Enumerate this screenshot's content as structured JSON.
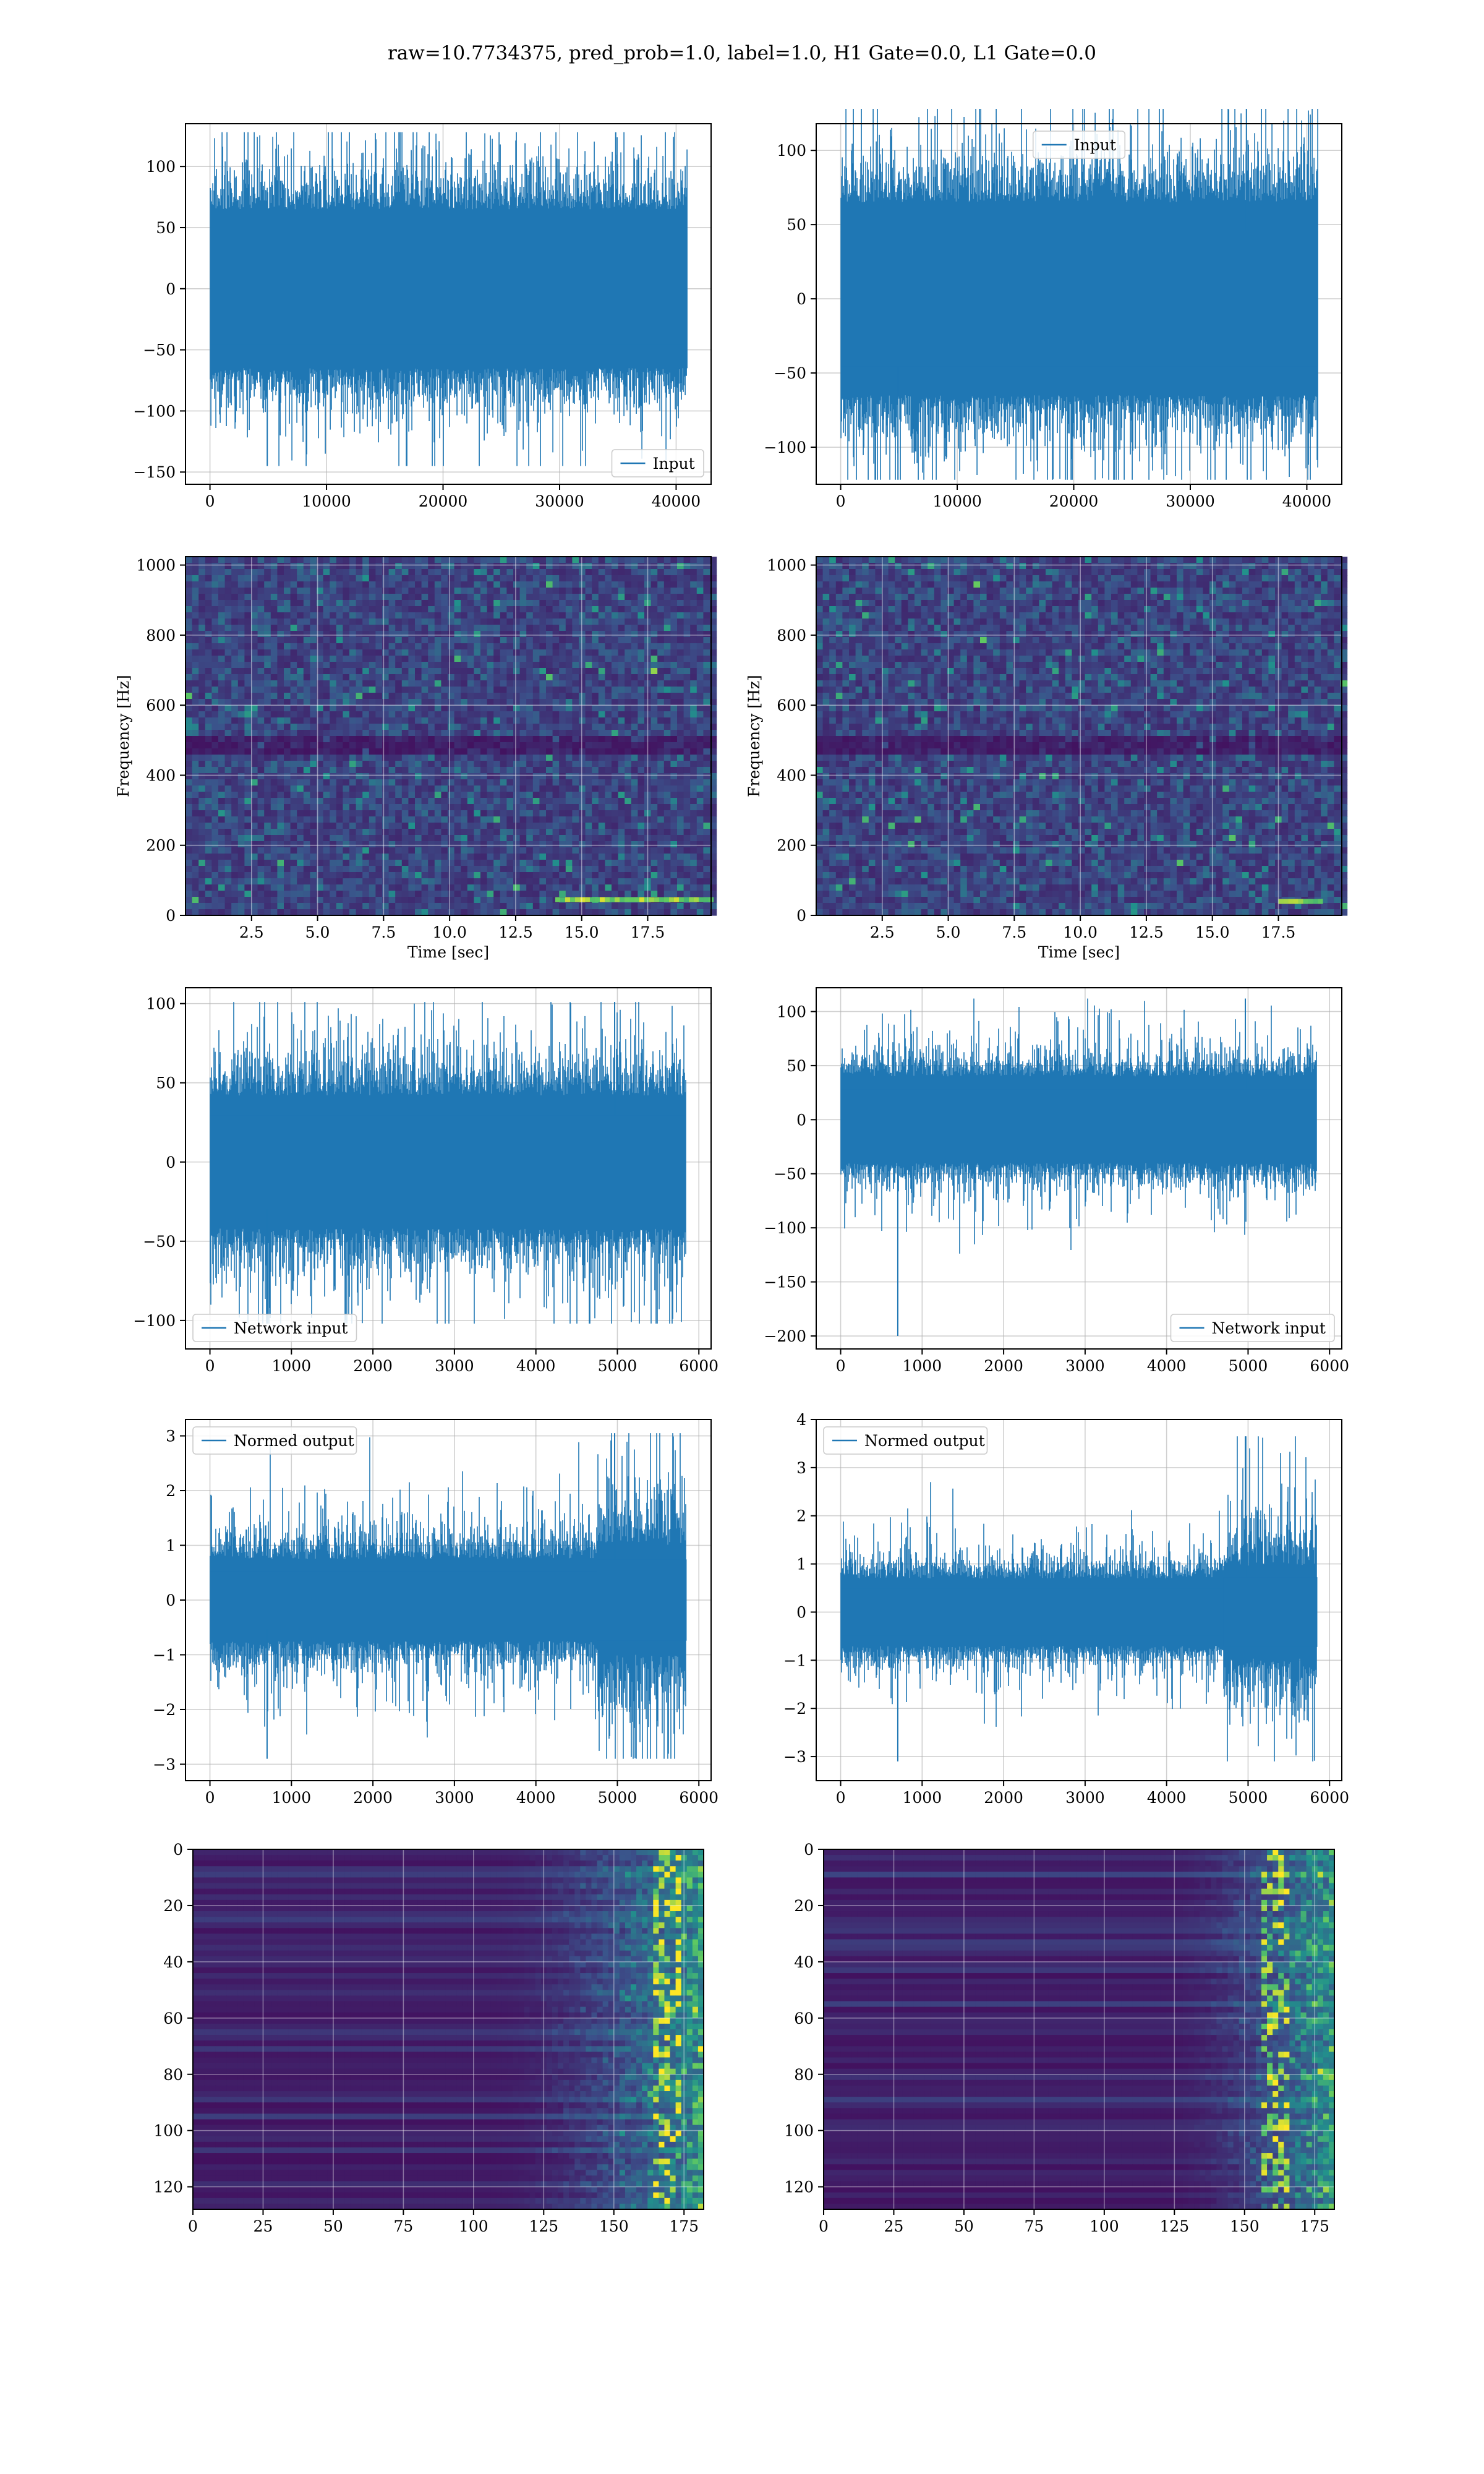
{
  "figure": {
    "title": "raw=10.7734375, pred_prob=1.0, label=1.0, H1 Gate=0.0, L1 Gate=0.0"
  },
  "colors": {
    "signal": "#1f77b4",
    "grid": "#b0b0b0",
    "axes": "#000000",
    "viridis_low": "#440154",
    "viridis_mid": "#21918c",
    "viridis_high": "#fde725"
  },
  "chart_data": [
    {
      "id": "input_h1",
      "type": "line",
      "legend": [
        "Input"
      ],
      "legend_loc": "lower right",
      "xlim": [
        -2100,
        43000
      ],
      "ylim": [
        -160,
        135
      ],
      "xticks": [
        0,
        10000,
        20000,
        30000,
        40000
      ],
      "yticks": [
        -150,
        -100,
        -50,
        0,
        50,
        100
      ],
      "envelope": {
        "n": 40960,
        "core": 65,
        "mean_spike": 30,
        "max": 128,
        "min": -145
      }
    },
    {
      "id": "input_l1",
      "type": "line",
      "legend": [
        "Input"
      ],
      "legend_loc": "upper center",
      "xlim": [
        -2100,
        43000
      ],
      "ylim": [
        -125,
        118
      ],
      "xticks": [
        0,
        10000,
        20000,
        30000,
        40000
      ],
      "yticks": [
        -100,
        -50,
        0,
        50,
        100
      ],
      "envelope": {
        "n": 40960,
        "core": 65,
        "mean_spike": 30,
        "max": 128,
        "min": -122
      }
    },
    {
      "id": "spec_h1",
      "type": "heatmap",
      "xlabel": "Time [sec]",
      "ylabel": "Frequency [Hz]",
      "xlim": [
        0,
        19.9
      ],
      "ylim": [
        0,
        1024
      ],
      "xticks": [
        2.5,
        5.0,
        7.5,
        10.0,
        12.5,
        15.0,
        17.5
      ],
      "yticks": [
        0,
        200,
        400,
        600,
        800,
        1000
      ],
      "dark_band_hz": 500,
      "bright_track": {
        "t": [
          14.0,
          19.9
        ],
        "f_hz": 45
      }
    },
    {
      "id": "spec_l1",
      "type": "heatmap",
      "xlabel": "Time [sec]",
      "ylabel": "Frequency [Hz]",
      "xlim": [
        0,
        19.9
      ],
      "ylim": [
        0,
        1024
      ],
      "xticks": [
        2.5,
        5.0,
        7.5,
        10.0,
        12.5,
        15.0,
        17.5
      ],
      "yticks": [
        0,
        200,
        400,
        600,
        800,
        1000
      ],
      "dark_band_hz": 500,
      "bright_track": {
        "t": [
          17.5,
          19.0
        ],
        "f_hz": 40
      }
    },
    {
      "id": "net_h1",
      "type": "line",
      "legend": [
        "Network input"
      ],
      "legend_loc": "lower left",
      "xlim": [
        -300,
        6150
      ],
      "ylim": [
        -118,
        110
      ],
      "xticks": [
        0,
        1000,
        2000,
        3000,
        4000,
        5000,
        6000
      ],
      "yticks": [
        -100,
        -50,
        0,
        50,
        100
      ],
      "envelope": {
        "n": 5840,
        "core": 42,
        "mean_spike": 25,
        "max": 101,
        "min": -102
      }
    },
    {
      "id": "net_l1",
      "type": "line",
      "legend": [
        "Network input"
      ],
      "legend_loc": "lower right",
      "xlim": [
        -300,
        6150
      ],
      "ylim": [
        -212,
        122
      ],
      "xticks": [
        0,
        1000,
        2000,
        3000,
        4000,
        5000,
        6000
      ],
      "yticks": [
        -200,
        -150,
        -100,
        -50,
        0,
        50,
        100
      ],
      "envelope": {
        "n": 5840,
        "core": 40,
        "mean_spike": 22,
        "max": 112,
        "min": -200
      }
    },
    {
      "id": "norm_h1",
      "type": "line",
      "legend": [
        "Normed output"
      ],
      "legend_loc": "upper left",
      "xlim": [
        -300,
        6150
      ],
      "ylim": [
        -3.3,
        3.3
      ],
      "xticks": [
        0,
        1000,
        2000,
        3000,
        4000,
        5000,
        6000
      ],
      "yticks": [
        -3,
        -2,
        -1,
        0,
        1,
        2,
        3
      ],
      "envelope": {
        "n": 5840,
        "core": 0.75,
        "mean_spike": 0.5,
        "max": 3.05,
        "min": -2.9,
        "burst": [
          4750,
          5850,
          2.2
        ]
      }
    },
    {
      "id": "norm_l1",
      "type": "line",
      "legend": [
        "Normed output"
      ],
      "legend_loc": "upper left",
      "xlim": [
        -300,
        6150
      ],
      "ylim": [
        -3.5,
        4.0
      ],
      "xticks": [
        0,
        1000,
        2000,
        3000,
        4000,
        5000,
        6000
      ],
      "yticks": [
        -3,
        -2,
        -1,
        0,
        1,
        2,
        3,
        4
      ],
      "envelope": {
        "n": 5840,
        "core": 0.7,
        "mean_spike": 0.45,
        "max": 3.65,
        "min": -3.1,
        "burst": [
          4700,
          5850,
          2.3
        ]
      }
    },
    {
      "id": "feat_h1",
      "type": "heatmap",
      "xlim": [
        0,
        182
      ],
      "ylim": [
        128,
        0
      ],
      "xticks": [
        0,
        25,
        50,
        75,
        100,
        125,
        150,
        175
      ],
      "yticks": [
        0,
        20,
        40,
        60,
        80,
        100,
        120
      ],
      "activity_onset_col": 105,
      "peak_col": 168
    },
    {
      "id": "feat_l1",
      "type": "heatmap",
      "xlim": [
        0,
        182
      ],
      "ylim": [
        128,
        0
      ],
      "xticks": [
        0,
        25,
        50,
        75,
        100,
        125,
        150,
        175
      ],
      "yticks": [
        0,
        20,
        40,
        60,
        80,
        100,
        120
      ],
      "activity_onset_col": 120,
      "peak_col": 160
    }
  ]
}
